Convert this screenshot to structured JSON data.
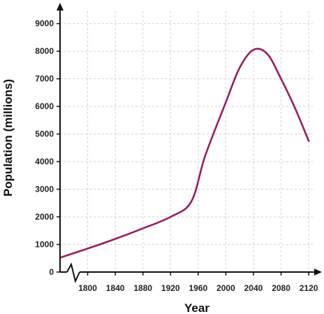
{
  "chart_data": {
    "type": "line",
    "xlabel": "Year",
    "ylabel": "Population (millions)",
    "xlim": [
      1760,
      2130
    ],
    "ylim": [
      0,
      9500
    ],
    "x_ticks": [
      1800,
      1840,
      1880,
      1920,
      1960,
      2000,
      2040,
      2080,
      2120
    ],
    "y_ticks": [
      0,
      1000,
      2000,
      3000,
      4000,
      5000,
      6000,
      7000,
      8000,
      9000
    ],
    "grid": true,
    "axis_break": "x",
    "line_color": "#9b1b66",
    "series": [
      {
        "x": [
          1760,
          1800,
          1840,
          1880,
          1920,
          1950,
          1970,
          2000,
          2020,
          2040,
          2060,
          2080,
          2100,
          2120
        ],
        "values": [
          520,
          850,
          1200,
          1580,
          2000,
          2550,
          4200,
          6150,
          7400,
          8050,
          7900,
          7000,
          5950,
          4750
        ]
      }
    ]
  }
}
